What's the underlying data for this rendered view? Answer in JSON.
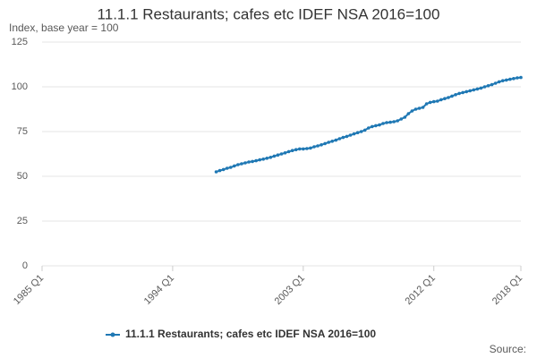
{
  "chart_data": {
    "type": "line",
    "title": "11.1.1 Restaurants; cafes etc IDEF NSA 2016=100",
    "subtitle": "Index, base year = 100",
    "source": "Source:",
    "categories": [
      "1985 Q1",
      null,
      null,
      null,
      null,
      null,
      null,
      null,
      null,
      null,
      null,
      null,
      null,
      null,
      null,
      null,
      null,
      null,
      null,
      null,
      null,
      null,
      null,
      null,
      null,
      null,
      null,
      null,
      null,
      null,
      null,
      null,
      null,
      null,
      null,
      null,
      "1994 Q1",
      null,
      null,
      null,
      null,
      null,
      null,
      null,
      null,
      null,
      null,
      null,
      null,
      null,
      null,
      null,
      null,
      null,
      null,
      null,
      null,
      null,
      null,
      null,
      null,
      null,
      null,
      null,
      null,
      null,
      null,
      null,
      null,
      null,
      null,
      null,
      "2003 Q1",
      null,
      null,
      null,
      null,
      null,
      null,
      null,
      null,
      null,
      null,
      null,
      null,
      null,
      null,
      null,
      null,
      null,
      null,
      null,
      null,
      null,
      null,
      null,
      null,
      null,
      null,
      null,
      null,
      null,
      null,
      null,
      null,
      null,
      null,
      null,
      "2012 Q1",
      null,
      null,
      null,
      null,
      null,
      null,
      null,
      null,
      null,
      null,
      null,
      null,
      null,
      null,
      null,
      null,
      null,
      null,
      null,
      null,
      null,
      null,
      null,
      "2018 Q1"
    ],
    "series": [
      {
        "name": "11.1.1 Restaurants; cafes etc IDEF NSA 2016=100",
        "color": "#1f78b4",
        "values": [
          null,
          null,
          null,
          null,
          null,
          null,
          null,
          null,
          null,
          null,
          null,
          null,
          null,
          null,
          null,
          null,
          null,
          null,
          null,
          null,
          null,
          null,
          null,
          null,
          null,
          null,
          null,
          null,
          null,
          null,
          null,
          null,
          null,
          null,
          null,
          null,
          null,
          null,
          null,
          null,
          null,
          null,
          null,
          null,
          null,
          null,
          null,
          null,
          52.5,
          53.2,
          53.8,
          54.5,
          55.0,
          55.8,
          56.5,
          57.0,
          57.5,
          58.0,
          58.3,
          58.7,
          59.2,
          59.6,
          60.1,
          60.6,
          61.3,
          61.9,
          62.5,
          63.1,
          63.8,
          64.4,
          64.9,
          65.3,
          65.3,
          65.5,
          65.8,
          66.5,
          67.0,
          67.6,
          68.3,
          69.0,
          69.6,
          70.2,
          71.0,
          71.7,
          72.3,
          73.0,
          73.7,
          74.4,
          75.0,
          75.8,
          77.0,
          77.8,
          78.3,
          78.7,
          79.5,
          80.0,
          80.2,
          80.5,
          81.0,
          82.0,
          83.0,
          85.0,
          86.5,
          87.5,
          88.0,
          88.5,
          90.5,
          91.3,
          91.7,
          92.0,
          92.8,
          93.4,
          94.0,
          94.8,
          95.6,
          96.3,
          96.8,
          97.3,
          97.8,
          98.3,
          98.8,
          99.3,
          100.0,
          100.6,
          101.2,
          102.0,
          102.8,
          103.4,
          103.8,
          104.2,
          104.6,
          105.0,
          105.2
        ]
      }
    ],
    "ylim": [
      0,
      125
    ],
    "yticks": [
      0,
      25,
      50,
      75,
      100,
      125
    ],
    "grid": true
  }
}
